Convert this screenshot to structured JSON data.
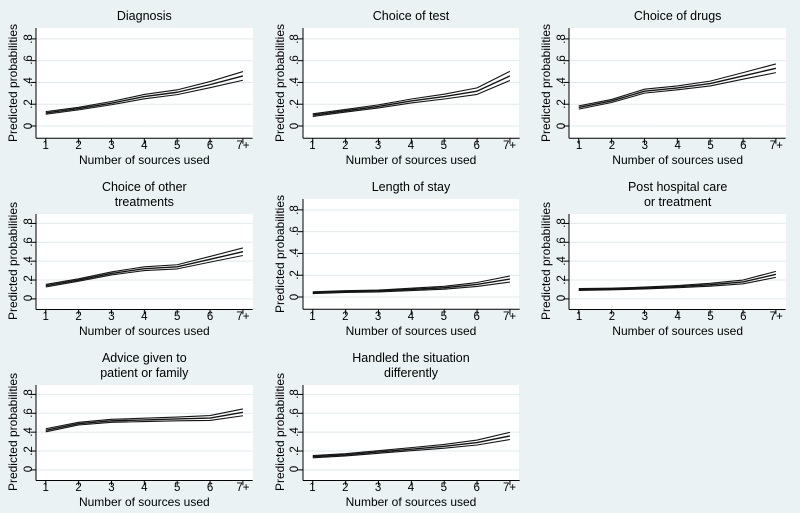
{
  "figure": {
    "background_color": "#eaf2f3",
    "plot_background_color": "#ffffff",
    "grid_color": "#dcebee",
    "axis_color": "#000000",
    "line_color": "#141414"
  },
  "chart_data": {
    "type": "line",
    "layout": "3x3 grid, 8 panels, bottom-right cell empty",
    "grid": true,
    "x": [
      "1",
      "2",
      "3",
      "4",
      "5",
      "6",
      "7+"
    ],
    "xlabel": "Number of sources used",
    "ylabel": "Predicted probabilities",
    "yticks": [
      0,
      0.2,
      0.4,
      0.6,
      0.8
    ],
    "ytick_labels": [
      "0",
      ".2",
      ".4",
      ".6",
      ".8"
    ],
    "ylim_display": [
      -0.1125,
      0.9
    ],
    "series_per_panel": [
      "ci_lower",
      "estimate",
      "ci_upper"
    ],
    "panels": [
      {
        "title": "Diagnosis",
        "estimate": [
          0.12,
          0.16,
          0.21,
          0.27,
          0.31,
          0.38,
          0.46
        ],
        "ci_lower": [
          0.108,
          0.148,
          0.195,
          0.25,
          0.288,
          0.352,
          0.42
        ],
        "ci_upper": [
          0.132,
          0.172,
          0.225,
          0.29,
          0.332,
          0.408,
          0.5
        ]
      },
      {
        "title": "Choice of test",
        "estimate": [
          0.1,
          0.14,
          0.18,
          0.23,
          0.27,
          0.32,
          0.46
        ],
        "ci_lower": [
          0.088,
          0.128,
          0.166,
          0.212,
          0.248,
          0.29,
          0.418
        ],
        "ci_upper": [
          0.112,
          0.152,
          0.194,
          0.248,
          0.292,
          0.35,
          0.502
        ]
      },
      {
        "title": "Choice of drugs",
        "estimate": [
          0.17,
          0.23,
          0.32,
          0.35,
          0.39,
          0.46,
          0.53
        ],
        "ci_lower": [
          0.155,
          0.216,
          0.302,
          0.332,
          0.368,
          0.43,
          0.49
        ],
        "ci_upper": [
          0.185,
          0.244,
          0.338,
          0.368,
          0.412,
          0.49,
          0.57
        ]
      },
      {
        "title": "Choice of other\ntreatments",
        "estimate": [
          0.14,
          0.2,
          0.27,
          0.32,
          0.34,
          0.42,
          0.5
        ],
        "ci_lower": [
          0.126,
          0.187,
          0.254,
          0.3,
          0.318,
          0.39,
          0.46
        ],
        "ci_upper": [
          0.154,
          0.213,
          0.286,
          0.34,
          0.362,
          0.45,
          0.54
        ]
      },
      {
        "title": "Length of stay",
        "estimate": [
          0.04,
          0.05,
          0.055,
          0.07,
          0.085,
          0.115,
          0.165
        ],
        "ci_lower": [
          0.032,
          0.042,
          0.046,
          0.059,
          0.072,
          0.097,
          0.137
        ],
        "ci_upper": [
          0.048,
          0.058,
          0.064,
          0.081,
          0.098,
          0.133,
          0.193
        ]
      },
      {
        "title": "Post hospital care\nor treatment",
        "estimate": [
          0.1,
          0.105,
          0.115,
          0.13,
          0.15,
          0.18,
          0.26
        ],
        "ci_lower": [
          0.09,
          0.096,
          0.105,
          0.118,
          0.135,
          0.16,
          0.228
        ],
        "ci_upper": [
          0.11,
          0.114,
          0.125,
          0.142,
          0.165,
          0.2,
          0.292
        ]
      },
      {
        "title": "Advice given to\npatient or family",
        "estimate": [
          0.42,
          0.49,
          0.52,
          0.53,
          0.54,
          0.55,
          0.61
        ],
        "ci_lower": [
          0.404,
          0.476,
          0.504,
          0.512,
          0.52,
          0.524,
          0.574
        ],
        "ci_upper": [
          0.436,
          0.504,
          0.536,
          0.548,
          0.56,
          0.576,
          0.646
        ]
      },
      {
        "title": "Handled the situation\ndifferently",
        "estimate": [
          0.14,
          0.16,
          0.19,
          0.22,
          0.25,
          0.29,
          0.36
        ],
        "ci_lower": [
          0.128,
          0.148,
          0.176,
          0.204,
          0.23,
          0.264,
          0.322
        ],
        "ci_upper": [
          0.152,
          0.172,
          0.204,
          0.236,
          0.27,
          0.316,
          0.398
        ]
      }
    ]
  }
}
